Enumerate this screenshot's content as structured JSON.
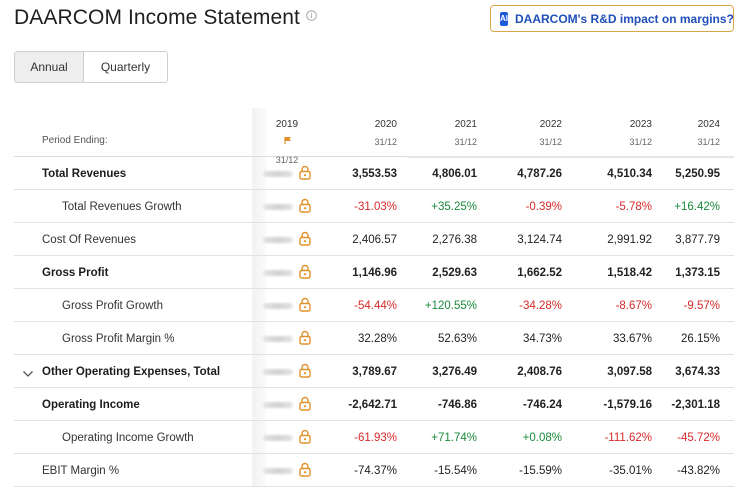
{
  "page": {
    "title": "DAARCOM Income Statement",
    "ai_button_badge": "AI",
    "ai_button_label": "DAARCOM's R&D impact on margins?"
  },
  "period_toggle": {
    "annual": "Annual",
    "quarterly": "Quarterly",
    "selected": "Annual"
  },
  "table": {
    "period_label": "Period Ending:",
    "columns": [
      {
        "year": "2019",
        "date": "31/12",
        "locked": true
      },
      {
        "year": "2020",
        "date": "31/12"
      },
      {
        "year": "2021",
        "date": "31/12"
      },
      {
        "year": "2022",
        "date": "31/12"
      },
      {
        "year": "2023",
        "date": "31/12"
      },
      {
        "year": "2024",
        "date": "31/12"
      }
    ],
    "rows": [
      {
        "label": "Total Revenues",
        "bold": true,
        "indent": 1,
        "values": [
          "3,553.53",
          "4,806.01",
          "4,787.26",
          "4,510.34",
          "5,250.95"
        ],
        "colors": [
          "",
          "",
          "",
          "",
          ""
        ]
      },
      {
        "label": "Total Revenues Growth",
        "bold": false,
        "indent": 2,
        "values": [
          "-31.03%",
          "+35.25%",
          "-0.39%",
          "-5.78%",
          "+16.42%"
        ],
        "colors": [
          "neg",
          "pos",
          "neg",
          "neg",
          "pos"
        ]
      },
      {
        "label": "Cost Of Revenues",
        "bold": false,
        "indent": 1,
        "values": [
          "2,406.57",
          "2,276.38",
          "3,124.74",
          "2,991.92",
          "3,877.79"
        ],
        "colors": [
          "",
          "",
          "",
          "",
          ""
        ]
      },
      {
        "label": "Gross Profit",
        "bold": true,
        "indent": 1,
        "values": [
          "1,146.96",
          "2,529.63",
          "1,662.52",
          "1,518.42",
          "1,373.15"
        ],
        "colors": [
          "",
          "",
          "",
          "",
          ""
        ]
      },
      {
        "label": "Gross Profit Growth",
        "bold": false,
        "indent": 2,
        "values": [
          "-54.44%",
          "+120.55%",
          "-34.28%",
          "-8.67%",
          "-9.57%"
        ],
        "colors": [
          "neg",
          "pos",
          "neg",
          "neg",
          "neg"
        ]
      },
      {
        "label": "Gross Profit Margin %",
        "bold": false,
        "indent": 2,
        "values": [
          "32.28%",
          "52.63%",
          "34.73%",
          "33.67%",
          "26.15%"
        ],
        "colors": [
          "",
          "",
          "",
          "",
          ""
        ]
      },
      {
        "label": "Other Operating Expenses, Total",
        "bold": true,
        "indent": 1,
        "expandable": true,
        "values": [
          "3,789.67",
          "3,276.49",
          "2,408.76",
          "3,097.58",
          "3,674.33"
        ],
        "colors": [
          "",
          "",
          "",
          "",
          ""
        ]
      },
      {
        "label": "Operating Income",
        "bold": true,
        "indent": 1,
        "values": [
          "-2,642.71",
          "-746.86",
          "-746.24",
          "-1,579.16",
          "-2,301.18"
        ],
        "colors": [
          "",
          "",
          "",
          "",
          ""
        ]
      },
      {
        "label": "Operating Income Growth",
        "bold": false,
        "indent": 2,
        "values": [
          "-61.93%",
          "+71.74%",
          "+0.08%",
          "-111.62%",
          "-45.72%"
        ],
        "colors": [
          "neg",
          "pos",
          "pos",
          "neg",
          "neg"
        ]
      },
      {
        "label": "EBIT Margin %",
        "bold": false,
        "indent": 1,
        "values": [
          "-74.37%",
          "-15.54%",
          "-15.59%",
          "-35.01%",
          "-43.82%"
        ],
        "colors": [
          "",
          "",
          "",
          "",
          ""
        ]
      }
    ]
  },
  "colors": {
    "negative": "#d62a2a",
    "positive": "#1a8a3a",
    "lock": "#e0922a",
    "ai_accent": "#1f5bd8"
  }
}
